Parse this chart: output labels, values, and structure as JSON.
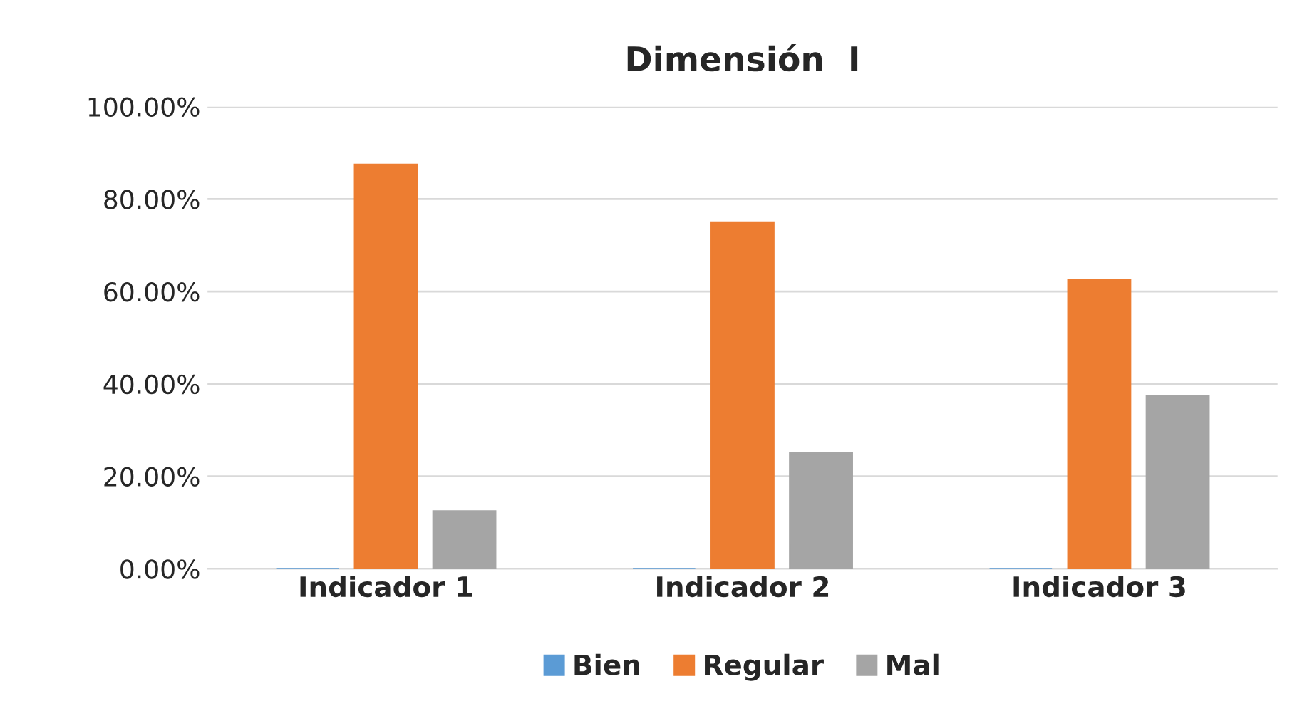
{
  "chart_data": {
    "type": "bar",
    "title": "Dimensión  I",
    "categories": [
      "Indicador 1",
      "Indicador 2",
      "Indicador 3"
    ],
    "series": [
      {
        "name": "Bien",
        "color": "#5b9bd5",
        "values": [
          0,
          0,
          0
        ]
      },
      {
        "name": "Regular",
        "color": "#ed7d31",
        "values": [
          87.5,
          75,
          62.5
        ]
      },
      {
        "name": "Mal",
        "color": "#a5a5a5",
        "values": [
          12.5,
          25,
          37.5
        ]
      }
    ],
    "ylim": [
      0,
      100
    ],
    "yticks": [
      {
        "value": 0,
        "label": "0.00%"
      },
      {
        "value": 20,
        "label": "20.00%"
      },
      {
        "value": 40,
        "label": "40.00%"
      },
      {
        "value": 60,
        "label": "60.00%"
      },
      {
        "value": 80,
        "label": "80.00%"
      },
      {
        "value": 100,
        "label": "100.00%"
      }
    ],
    "grid": "y",
    "legend": "bottom"
  }
}
